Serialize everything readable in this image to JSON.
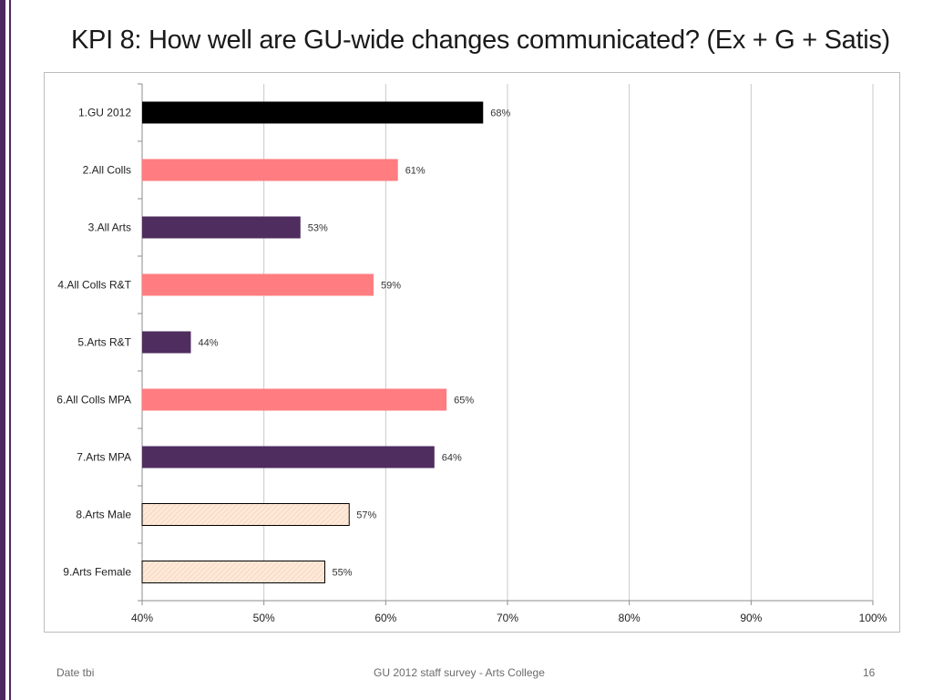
{
  "slide": {
    "title": "KPI 8: How well are GU-wide changes communicated? (Ex + G + Satis)",
    "footer_left": "Date tbi",
    "footer_center": "GU 2012 staff survey -  Arts College",
    "page_number": "16"
  },
  "colors": {
    "gu": "#000000",
    "all": "#ff7c80",
    "arts": "#4f2d5f",
    "demographic": "#fde9d9",
    "grid": "#c8c8c8",
    "accent_bar": "#4b2a5e"
  },
  "chart_data": {
    "type": "bar",
    "orientation": "horizontal",
    "title": "",
    "xlabel": "",
    "ylabel": "",
    "xlim": [
      40,
      100
    ],
    "x_ticks": [
      40,
      50,
      60,
      70,
      80,
      90,
      100
    ],
    "x_tick_labels": [
      "40%",
      "50%",
      "60%",
      "70%",
      "80%",
      "90%",
      "100%"
    ],
    "grid": true,
    "categories": [
      "1.GU 2012",
      "2.All Colls",
      "3.All Arts",
      "4.All Colls R&T",
      "5.Arts R&T",
      "6.All Colls MPA",
      "7.Arts MPA",
      "8.Arts Male",
      "9.Arts Female"
    ],
    "values": [
      68,
      61,
      53,
      59,
      44,
      65,
      64,
      57,
      55
    ],
    "value_labels": [
      "68%",
      "61%",
      "53%",
      "59%",
      "44%",
      "65%",
      "64%",
      "57%",
      "55%"
    ],
    "bar_groups": [
      "gu",
      "all",
      "arts",
      "all",
      "arts",
      "all",
      "arts",
      "demographic",
      "demographic"
    ]
  }
}
